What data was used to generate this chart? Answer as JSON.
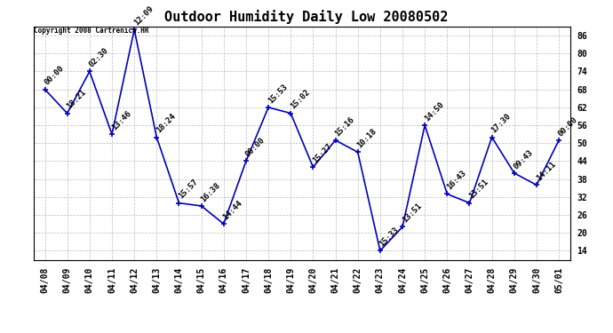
{
  "title": "Outdoor Humidity Daily Low 20080502",
  "copyright": "Copyright 2008 Cartrenica.HR",
  "x_labels": [
    "04/08",
    "04/09",
    "04/10",
    "04/11",
    "04/12",
    "04/13",
    "04/14",
    "04/15",
    "04/16",
    "04/17",
    "04/18",
    "04/19",
    "04/20",
    "04/21",
    "04/22",
    "04/23",
    "04/24",
    "04/25",
    "04/26",
    "04/27",
    "04/28",
    "04/29",
    "04/30",
    "05/01"
  ],
  "y_values": [
    68,
    60,
    74,
    53,
    88,
    52,
    30,
    29,
    23,
    44,
    62,
    60,
    42,
    51,
    47,
    14,
    22,
    56,
    33,
    30,
    52,
    40,
    36,
    51
  ],
  "point_labels": [
    "00:00",
    "18:21",
    "02:30",
    "13:46",
    "12:09",
    "18:24",
    "15:57",
    "16:38",
    "14:44",
    "00:00",
    "15:53",
    "15:02",
    "15:27",
    "15:16",
    "10:18",
    "15:33",
    "13:51",
    "14:50",
    "16:43",
    "13:51",
    "17:30",
    "09:43",
    "14:11",
    "00:00"
  ],
  "line_color": "#0000bb",
  "marker_color": "#0000bb",
  "background_color": "#ffffff",
  "grid_color": "#bbbbbb",
  "ylim": [
    11,
    89
  ],
  "yticks": [
    14,
    20,
    26,
    32,
    38,
    44,
    50,
    56,
    62,
    68,
    74,
    80,
    86
  ],
  "title_fontsize": 11,
  "label_fontsize": 6.5,
  "tick_fontsize": 7,
  "copyright_fontsize": 5.5
}
